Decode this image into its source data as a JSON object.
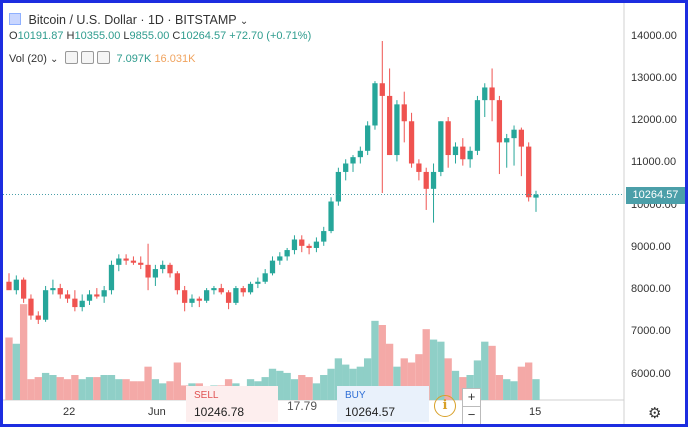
{
  "header": {
    "symbol_title": "Bitcoin / U.S. Dollar · 1D · BITSTAMP",
    "ohlc": {
      "open_label": "O",
      "open": "10191.87",
      "high_label": "H",
      "high": "10355.00",
      "low_label": "L",
      "low": "9855.00",
      "close_label": "C",
      "close": "10264.57",
      "change": "+72.70 (+0.71%)"
    },
    "volume_indicator": {
      "label": "Vol (20)",
      "value1": "7.097K",
      "value2": "16.031K"
    }
  },
  "trade_panel": {
    "sell_label": "SELL",
    "sell_price": "10246.78",
    "spread": "17.79",
    "buy_label": "BUY",
    "buy_price": "10264.57",
    "info_glyph": "i",
    "zoom_in": "+",
    "zoom_out": "−"
  },
  "price_axis": {
    "ticks": [
      "14000.00",
      "13000.00",
      "12000.00",
      "11000.00",
      "10000.00",
      "9000.00",
      "8000.00",
      "7000.00",
      "6000.00"
    ],
    "current_price": "10264.57"
  },
  "time_axis": {
    "ticks": [
      "22",
      "Jun",
      "15"
    ]
  },
  "icons": {
    "settings": "gear-icon",
    "info": "info-icon",
    "dropdown": "chevron-down-icon",
    "eye": "eye-icon",
    "settings_small": "gear-icon",
    "close_small": "close-icon"
  },
  "colors": {
    "up": "#26a69a",
    "down": "#ef5350",
    "vol_up": "#8fcfc7",
    "vol_down": "#f4a9a7",
    "frame": "#1c2de0"
  },
  "chart_data": {
    "type": "candlestick",
    "ylim": [
      5400,
      14800
    ],
    "candles": [
      [
        8200,
        8400,
        8050,
        8000
      ],
      [
        8000,
        8350,
        7900,
        8250
      ],
      [
        8250,
        8300,
        7700,
        7800
      ],
      [
        7800,
        7900,
        7300,
        7400
      ],
      [
        7400,
        7500,
        7200,
        7300
      ],
      [
        7300,
        8100,
        7250,
        8000
      ],
      [
        8000,
        8250,
        7900,
        8050
      ],
      [
        8050,
        8150,
        7800,
        7900
      ],
      [
        7900,
        8000,
        7700,
        7800
      ],
      [
        7800,
        8000,
        7500,
        7600
      ],
      [
        7600,
        7900,
        7500,
        7750
      ],
      [
        7750,
        8000,
        7650,
        7900
      ],
      [
        7900,
        8050,
        7800,
        7850
      ],
      [
        7850,
        8100,
        7700,
        8000
      ],
      [
        8000,
        8700,
        7900,
        8600
      ],
      [
        8600,
        8850,
        8450,
        8750
      ],
      [
        8750,
        8850,
        8600,
        8700
      ],
      [
        8700,
        8800,
        8600,
        8650
      ],
      [
        8650,
        8800,
        8500,
        8600
      ],
      [
        8600,
        9100,
        8000,
        8300
      ],
      [
        8300,
        8600,
        8100,
        8500
      ],
      [
        8500,
        8700,
        8400,
        8600
      ],
      [
        8600,
        8650,
        8300,
        8400
      ],
      [
        8400,
        8450,
        7900,
        8000
      ],
      [
        8000,
        8100,
        7500,
        7700
      ],
      [
        7700,
        7900,
        7600,
        7800
      ],
      [
        7800,
        7850,
        7600,
        7750
      ],
      [
        7750,
        8050,
        7700,
        8000
      ],
      [
        8000,
        8100,
        7900,
        8050
      ],
      [
        8050,
        8150,
        7900,
        7950
      ],
      [
        7950,
        8000,
        7550,
        7700
      ],
      [
        7700,
        8100,
        7650,
        8050
      ],
      [
        8050,
        8100,
        7850,
        7950
      ],
      [
        7950,
        8200,
        7900,
        8150
      ],
      [
        8150,
        8300,
        8050,
        8200
      ],
      [
        8200,
        8500,
        8150,
        8400
      ],
      [
        8400,
        8800,
        8350,
        8700
      ],
      [
        8700,
        8900,
        8600,
        8800
      ],
      [
        8800,
        9000,
        8700,
        8950
      ],
      [
        8950,
        9300,
        8850,
        9200
      ],
      [
        9200,
        9300,
        8900,
        9050
      ],
      [
        9050,
        9100,
        8850,
        9000
      ],
      [
        9000,
        9250,
        8900,
        9150
      ],
      [
        9150,
        9500,
        9050,
        9400
      ],
      [
        9400,
        10200,
        9350,
        10100
      ],
      [
        10100,
        10900,
        10000,
        10800
      ],
      [
        10800,
        11100,
        10600,
        11000
      ],
      [
        11000,
        11200,
        10800,
        11150
      ],
      [
        11150,
        11400,
        11000,
        11300
      ],
      [
        11300,
        12000,
        11200,
        11900
      ],
      [
        11900,
        12950,
        11800,
        12900
      ],
      [
        12900,
        13900,
        10300,
        12600
      ],
      [
        12600,
        13250,
        11200,
        11200
      ],
      [
        11200,
        12500,
        11050,
        12400
      ],
      [
        12400,
        12700,
        11500,
        12000
      ],
      [
        12000,
        12200,
        10900,
        11000
      ],
      [
        11000,
        11100,
        10600,
        10800
      ],
      [
        10800,
        10900,
        9900,
        10400
      ],
      [
        10400,
        11000,
        9600,
        10800
      ],
      [
        10800,
        12000,
        10700,
        12000
      ],
      [
        12000,
        12100,
        10900,
        11200
      ],
      [
        11200,
        11500,
        11000,
        11400
      ],
      [
        11400,
        11600,
        10950,
        11100
      ],
      [
        11100,
        11400,
        10900,
        11300
      ],
      [
        11300,
        12600,
        11200,
        12500
      ],
      [
        12500,
        12900,
        12100,
        12800
      ],
      [
        12800,
        13250,
        12000,
        12500
      ],
      [
        12500,
        12600,
        10750,
        11500
      ],
      [
        11500,
        11700,
        10900,
        11600
      ],
      [
        11600,
        11900,
        10950,
        11800
      ],
      [
        11800,
        11850,
        10700,
        11400
      ],
      [
        11400,
        11500,
        10100,
        10200
      ],
      [
        10192,
        10355,
        9855,
        10265
      ]
    ],
    "volumes": [
      3000,
      2700,
      4600,
      1000,
      1100,
      1300,
      1200,
      1100,
      1000,
      1200,
      1000,
      1100,
      1100,
      1200,
      1200,
      1000,
      1000,
      900,
      900,
      1600,
      1000,
      800,
      900,
      1800,
      700,
      800,
      800,
      600,
      700,
      700,
      1000,
      800,
      600,
      1000,
      900,
      1100,
      1500,
      1400,
      1300,
      1000,
      1200,
      1100,
      800,
      1200,
      1500,
      2000,
      1700,
      1500,
      1600,
      2000,
      3800,
      3600,
      2700,
      1600,
      2000,
      1800,
      2200,
      3400,
      2900,
      2800,
      2000,
      1400,
      1100,
      1200,
      1900,
      2800,
      2600,
      1200,
      1000,
      900,
      1600,
      1800,
      1000
    ]
  }
}
